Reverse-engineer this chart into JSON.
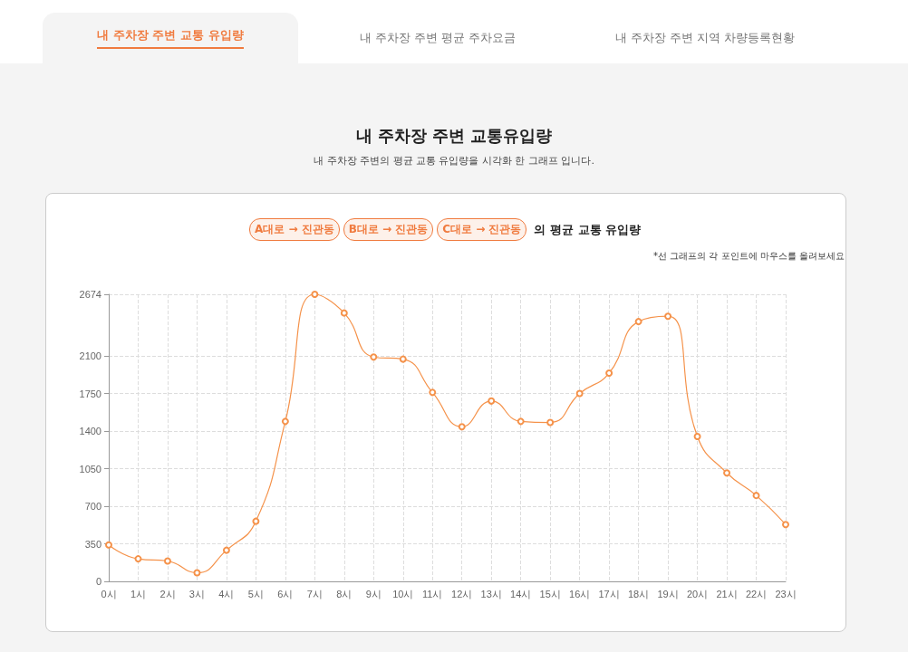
{
  "chart_data": {
    "type": "line",
    "title": "내 주차장 주변 교통유입량",
    "subtitle": "내 주차장 주변의 평균 교통 유입량을 시각화 한 그래프 입니다.",
    "annotations": [
      "내 주차장 주변 교통 유입량",
      "내 주차장 주변 평균 주차요금",
      "내 주차장 주변 지역 차량등록현황",
      "A대로 → 진관동",
      "B대로 → 진관동",
      "C대로 → 진관동",
      "의 평균 교통 유입량",
      "*선 그래프의 각 포인트에 마우스를 올려보세요"
    ],
    "categories": [
      "0시",
      "1시",
      "2시",
      "3시",
      "4시",
      "5시",
      "6시",
      "7시",
      "8시",
      "9시",
      "10시",
      "11시",
      "12시",
      "13시",
      "14시",
      "15시",
      "16시",
      "17시",
      "18시",
      "19시",
      "20시",
      "21시",
      "22시",
      "23시"
    ],
    "values": [
      340,
      210,
      190,
      80,
      290,
      560,
      1490,
      2674,
      2500,
      2090,
      2070,
      1760,
      1440,
      1680,
      1490,
      1480,
      1750,
      1940,
      2420,
      2470,
      1350,
      1010,
      800,
      530
    ],
    "color": "#f5924a",
    "ylim": [
      0,
      2674
    ],
    "yticks": [
      0,
      350,
      700,
      1050,
      1400,
      1750,
      2100,
      2674
    ],
    "grid": true,
    "marker": "circle"
  }
}
